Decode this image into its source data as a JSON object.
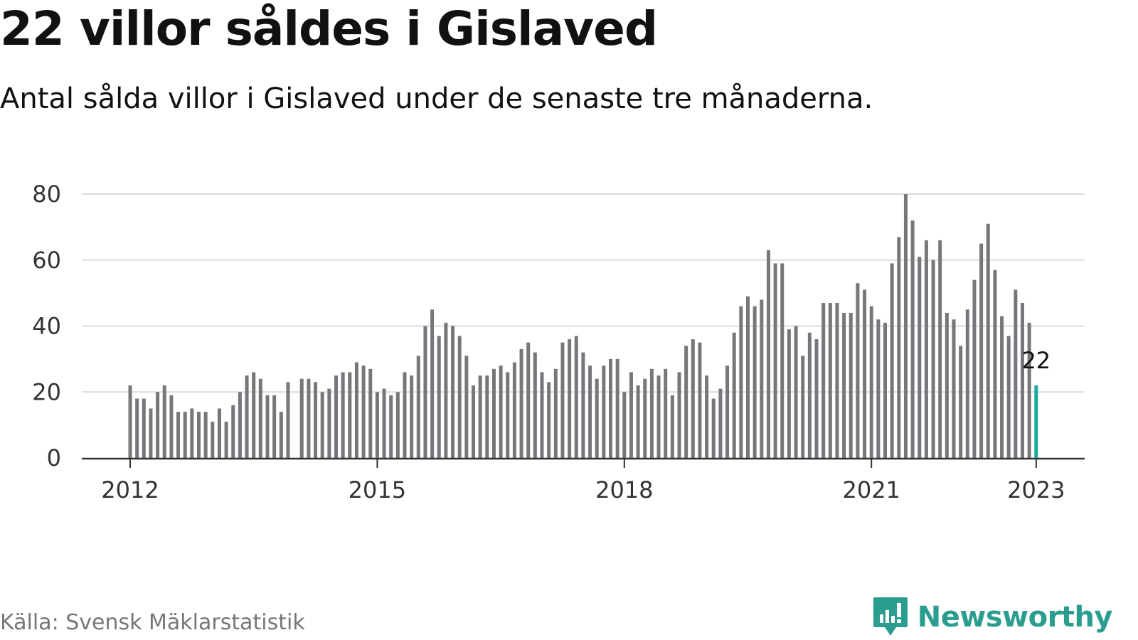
{
  "title": "22 villor såldes i Gislaved",
  "subtitle": "Antal sålda villor i Gislaved under de senaste tre månaderna.",
  "source": "Källa: Svensk Mäklarstatistik",
  "brand": "Newsworthy",
  "colors": {
    "bar": "#77767b",
    "highlight": "#1aab9b",
    "grid": "#dcdcdc",
    "axis": "#333333",
    "brand": "#2a9d8f"
  },
  "chart_data": {
    "type": "bar",
    "title": "22 villor såldes i Gislaved",
    "subtitle": "Antal sålda villor i Gislaved under de senaste tre månaderna.",
    "xlabel": "",
    "ylabel": "",
    "ylim": [
      0,
      80
    ],
    "yticks": [
      0,
      20,
      40,
      60,
      80
    ],
    "xticks": [
      {
        "label": "2012",
        "index": 0
      },
      {
        "label": "2015",
        "index": 36
      },
      {
        "label": "2018",
        "index": 72
      },
      {
        "label": "2021",
        "index": 108
      },
      {
        "label": "2023",
        "index": 132
      }
    ],
    "grid": true,
    "first_period": "2012-01",
    "last_period": "2023-01",
    "highlight_last": true,
    "last_value_label": "22",
    "values": [
      22,
      18,
      18,
      15,
      20,
      22,
      19,
      14,
      14,
      15,
      14,
      14,
      11,
      15,
      11,
      16,
      20,
      25,
      26,
      24,
      19,
      19,
      14,
      23,
      0,
      24,
      24,
      23,
      20,
      21,
      25,
      26,
      26,
      29,
      28,
      27,
      20,
      21,
      19,
      20,
      26,
      25,
      31,
      40,
      45,
      37,
      41,
      40,
      37,
      31,
      22,
      25,
      25,
      27,
      28,
      26,
      29,
      33,
      35,
      32,
      26,
      23,
      27,
      35,
      36,
      37,
      32,
      28,
      24,
      28,
      30,
      30,
      20,
      26,
      22,
      24,
      27,
      25,
      27,
      19,
      26,
      34,
      36,
      35,
      25,
      18,
      21,
      28,
      38,
      46,
      49,
      46,
      48,
      63,
      59,
      59,
      39,
      40,
      31,
      38,
      36,
      47,
      47,
      47,
      44,
      44,
      53,
      51,
      46,
      42,
      41,
      59,
      67,
      80,
      72,
      61,
      66,
      60,
      66,
      44,
      42,
      34,
      45,
      54,
      65,
      71,
      57,
      43,
      37,
      51,
      47,
      41,
      22
    ]
  }
}
